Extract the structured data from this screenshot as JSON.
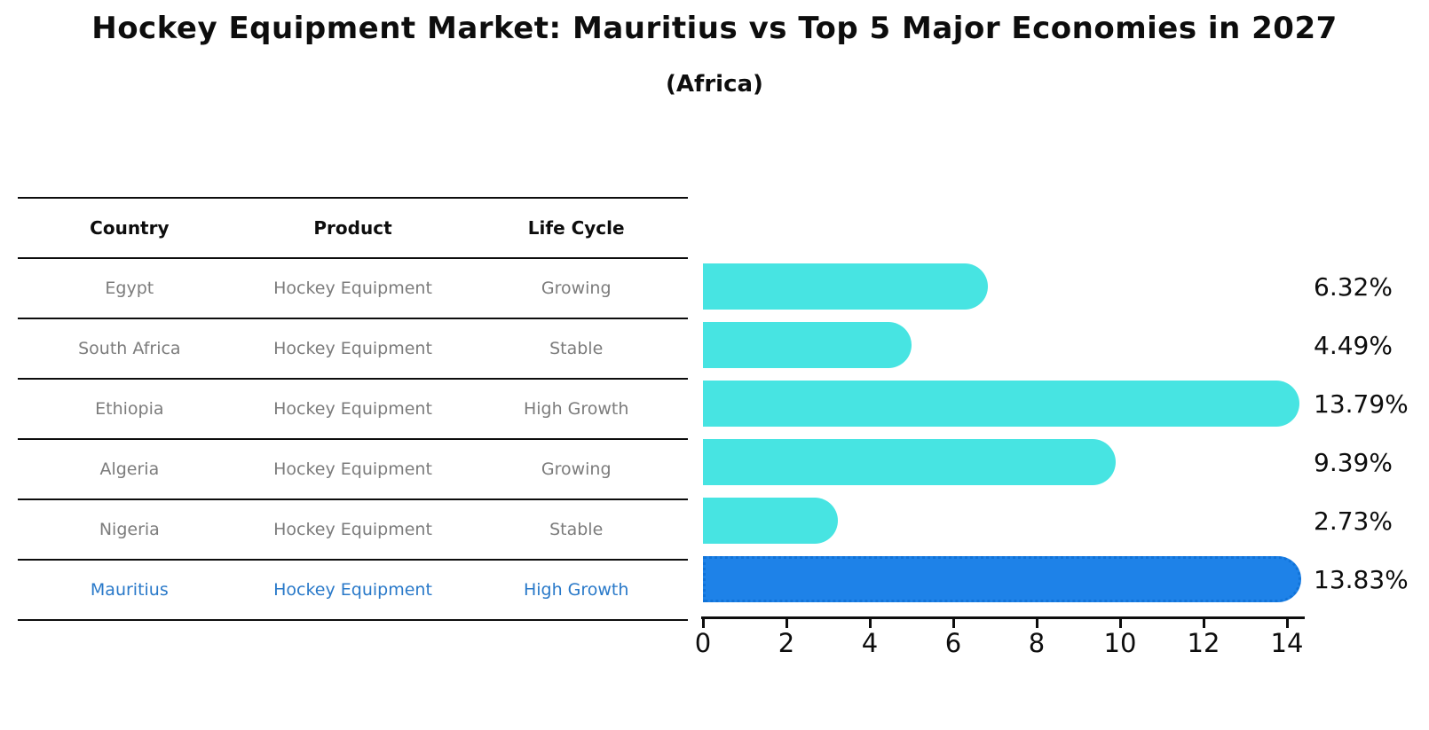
{
  "title": "Hockey Equipment Market: Mauritius vs Top 5 Major Economies in 2027",
  "subtitle": "(Africa)",
  "table": {
    "headers": [
      "Country",
      "Product",
      "Life Cycle"
    ],
    "rows": [
      {
        "country": "Egypt",
        "product": "Hockey Equipment",
        "life_cycle": "Growing"
      },
      {
        "country": "South Africa",
        "product": "Hockey Equipment",
        "life_cycle": "Stable"
      },
      {
        "country": "Ethiopia",
        "product": "Hockey Equipment",
        "life_cycle": "High Growth"
      },
      {
        "country": "Algeria",
        "product": "Hockey Equipment",
        "life_cycle": "Growing"
      },
      {
        "country": "Nigeria",
        "product": "Hockey Equipment",
        "life_cycle": "Stable"
      },
      {
        "country": "Mauritius",
        "product": "Hockey Equipment",
        "life_cycle": "High Growth"
      }
    ]
  },
  "chart_data": {
    "type": "bar",
    "orientation": "horizontal",
    "categories": [
      "Egypt",
      "South Africa",
      "Ethiopia",
      "Algeria",
      "Nigeria",
      "Mauritius"
    ],
    "values": [
      6.32,
      4.49,
      13.79,
      9.39,
      2.73,
      13.83
    ],
    "value_labels": [
      "6.32%",
      "4.49%",
      "13.79%",
      "9.39%",
      "2.73%",
      "13.83%"
    ],
    "highlight_category": "Mauritius",
    "x_ticks": [
      0,
      2,
      4,
      6,
      8,
      10,
      12,
      14
    ],
    "xlim": [
      0,
      14.5
    ],
    "grid": false,
    "legend": "none",
    "title": "Hockey Equipment Market: Mauritius vs Top 5 Major Economies in 2027 (Africa)",
    "xlabel": "",
    "ylabel": "",
    "colors": {
      "bar": "#47e4e2",
      "highlight_bar": "#1e82e8",
      "highlight_border": "#1173d8",
      "row_text": "#7c7c7c",
      "highlight_text": "#2979c9",
      "axis_text": "#0d0d0d"
    }
  }
}
